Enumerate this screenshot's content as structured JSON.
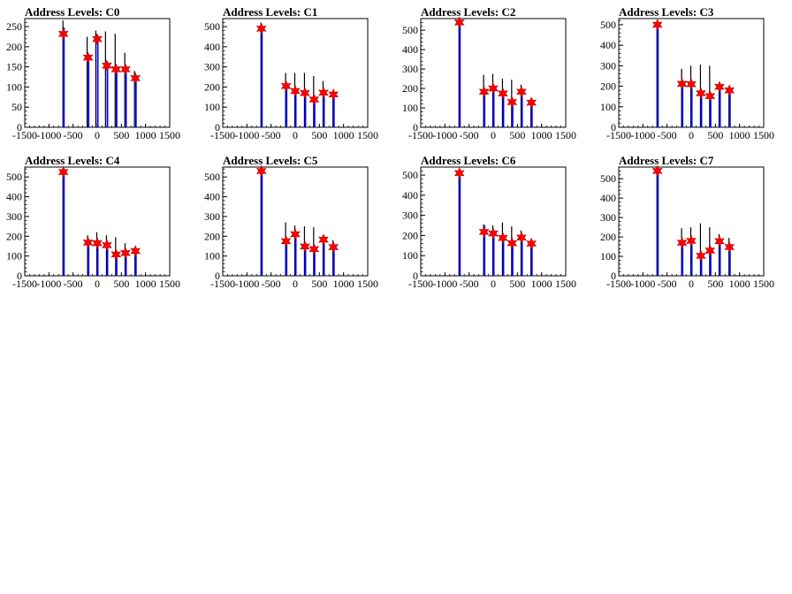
{
  "chart_data": [
    {
      "type": "bar",
      "title": "Address Levels: C0",
      "xlim": [
        -1500,
        1500
      ],
      "ylim": [
        0,
        270
      ],
      "xticks": [
        -1500,
        -1000,
        -500,
        0,
        500,
        1000,
        1500
      ],
      "yticks": [
        0,
        50,
        100,
        150,
        200,
        250
      ],
      "series": [
        {
          "color": "#000000",
          "points": [
            [
              -700,
              265
            ],
            [
              -200,
              225
            ],
            [
              -20,
              240
            ],
            [
              180,
              238
            ],
            [
              380,
              232
            ],
            [
              580,
              185
            ],
            [
              780,
              140
            ]
          ]
        },
        {
          "color": "#0000ff",
          "points": [
            [
              -700,
              248
            ],
            [
              -190,
              175
            ],
            [
              0,
              225
            ],
            [
              200,
              155
            ],
            [
              390,
              150
            ],
            [
              585,
              148
            ],
            [
              790,
              125
            ]
          ]
        }
      ],
      "peaks": [
        [
          -700,
          232
        ],
        [
          -190,
          173
        ],
        [
          0,
          219
        ],
        [
          200,
          153
        ],
        [
          390,
          144
        ],
        [
          585,
          144
        ],
        [
          790,
          122
        ]
      ],
      "marker_color": "#ff0000"
    },
    {
      "type": "bar",
      "title": "Address Levels: C1",
      "xlim": [
        -1500,
        1500
      ],
      "ylim": [
        0,
        540
      ],
      "xticks": [
        -1500,
        -1000,
        -500,
        0,
        500,
        1000,
        1500
      ],
      "yticks": [
        0,
        100,
        200,
        300,
        400,
        500
      ],
      "series": [
        {
          "color": "#000000",
          "points": [
            [
              -700,
              520
            ],
            [
              -190,
              270
            ],
            [
              0,
              270
            ],
            [
              200,
              270
            ],
            [
              390,
              255
            ],
            [
              585,
              230
            ],
            [
              790,
              180
            ]
          ]
        },
        {
          "color": "#0000ff",
          "points": [
            [
              -700,
              495
            ],
            [
              -190,
              210
            ],
            [
              0,
              185
            ],
            [
              200,
              175
            ],
            [
              390,
              145
            ],
            [
              585,
              180
            ],
            [
              790,
              165
            ]
          ]
        }
      ],
      "peaks": [
        [
          -700,
          490
        ],
        [
          -190,
          205
        ],
        [
          0,
          180
        ],
        [
          200,
          170
        ],
        [
          390,
          138
        ],
        [
          585,
          172
        ],
        [
          790,
          163
        ]
      ],
      "marker_color": "#ff0000"
    },
    {
      "type": "bar",
      "title": "Address Levels: C2",
      "xlim": [
        -1500,
        1500
      ],
      "ylim": [
        0,
        560
      ],
      "xticks": [
        -1500,
        -1000,
        -500,
        0,
        500,
        1000,
        1500
      ],
      "yticks": [
        0,
        100,
        200,
        300,
        400,
        500
      ],
      "series": [
        {
          "color": "#000000",
          "points": [
            [
              -700,
              540
            ],
            [
              -190,
              270
            ],
            [
              0,
              275
            ],
            [
              200,
              250
            ],
            [
              390,
              245
            ],
            [
              585,
              220
            ],
            [
              790,
              150
            ]
          ]
        },
        {
          "color": "#0000ff",
          "points": [
            [
              -700,
              545
            ],
            [
              -190,
              190
            ],
            [
              0,
              205
            ],
            [
              200,
              180
            ],
            [
              390,
              140
            ],
            [
              585,
              190
            ],
            [
              790,
              135
            ]
          ]
        }
      ],
      "peaks": [
        [
          -700,
          540
        ],
        [
          -190,
          183
        ],
        [
          0,
          200
        ],
        [
          200,
          174
        ],
        [
          390,
          130
        ],
        [
          585,
          183
        ],
        [
          790,
          127
        ]
      ],
      "marker_color": "#ff0000"
    },
    {
      "type": "bar",
      "title": "Address Levels: C3",
      "xlim": [
        -1500,
        1500
      ],
      "ylim": [
        0,
        530
      ],
      "xticks": [
        -1500,
        -1000,
        -500,
        0,
        500,
        1000,
        1500
      ],
      "yticks": [
        0,
        100,
        200,
        300,
        400,
        500
      ],
      "series": [
        {
          "color": "#000000",
          "points": [
            [
              -700,
              510
            ],
            [
              -190,
              285
            ],
            [
              0,
              300
            ],
            [
              200,
              305
            ],
            [
              390,
              300
            ],
            [
              585,
              215
            ],
            [
              790,
              200
            ]
          ]
        },
        {
          "color": "#0000ff",
          "points": [
            [
              -700,
              505
            ],
            [
              -190,
              215
            ],
            [
              0,
              215
            ],
            [
              200,
              175
            ],
            [
              390,
              160
            ],
            [
              585,
              200
            ],
            [
              790,
              185
            ]
          ]
        }
      ],
      "peaks": [
        [
          -700,
          500
        ],
        [
          -190,
          212
        ],
        [
          0,
          210
        ],
        [
          200,
          166
        ],
        [
          390,
          152
        ],
        [
          585,
          197
        ],
        [
          790,
          180
        ]
      ],
      "marker_color": "#ff0000"
    },
    {
      "type": "bar",
      "title": "Address Levels: C4",
      "xlim": [
        -1500,
        1500
      ],
      "ylim": [
        0,
        550
      ],
      "xticks": [
        -1500,
        -1000,
        -500,
        0,
        500,
        1000,
        1500
      ],
      "yticks": [
        0,
        100,
        200,
        300,
        400,
        500
      ],
      "series": [
        {
          "color": "#000000",
          "points": [
            [
              -700,
              535
            ],
            [
              -190,
              205
            ],
            [
              0,
              220
            ],
            [
              200,
              205
            ],
            [
              390,
              195
            ],
            [
              585,
              165
            ],
            [
              790,
              135
            ]
          ]
        },
        {
          "color": "#0000ff",
          "points": [
            [
              -700,
              530
            ],
            [
              -190,
              175
            ],
            [
              0,
              170
            ],
            [
              200,
              160
            ],
            [
              390,
              115
            ],
            [
              585,
              125
            ],
            [
              790,
              130
            ]
          ]
        }
      ],
      "peaks": [
        [
          -700,
          525
        ],
        [
          -190,
          168
        ],
        [
          0,
          165
        ],
        [
          200,
          155
        ],
        [
          390,
          108
        ],
        [
          585,
          115
        ],
        [
          790,
          125
        ]
      ],
      "marker_color": "#ff0000"
    },
    {
      "type": "bar",
      "title": "Address Levels: C5",
      "xlim": [
        -1500,
        1500
      ],
      "ylim": [
        0,
        550
      ],
      "xticks": [
        -1500,
        -1000,
        -500,
        0,
        500,
        1000,
        1500
      ],
      "yticks": [
        0,
        100,
        200,
        300,
        400,
        500
      ],
      "series": [
        {
          "color": "#000000",
          "points": [
            [
              -700,
              545
            ],
            [
              -190,
              270
            ],
            [
              0,
              255
            ],
            [
              200,
              250
            ],
            [
              390,
              245
            ],
            [
              585,
              205
            ],
            [
              790,
              180
            ]
          ]
        },
        {
          "color": "#0000ff",
          "points": [
            [
              -700,
              535
            ],
            [
              -190,
              180
            ],
            [
              0,
              215
            ],
            [
              200,
              150
            ],
            [
              390,
              140
            ],
            [
              585,
              185
            ],
            [
              790,
              150
            ]
          ]
        }
      ],
      "peaks": [
        [
          -700,
          530
        ],
        [
          -190,
          175
        ],
        [
          0,
          210
        ],
        [
          200,
          148
        ],
        [
          390,
          135
        ],
        [
          585,
          183
        ],
        [
          790,
          145
        ]
      ],
      "marker_color": "#ff0000"
    },
    {
      "type": "bar",
      "title": "Address Levels: C6",
      "xlim": [
        -1500,
        1500
      ],
      "ylim": [
        0,
        540
      ],
      "xticks": [
        -1500,
        -1000,
        -500,
        0,
        500,
        1000,
        1500
      ],
      "yticks": [
        0,
        100,
        200,
        300,
        400,
        500
      ],
      "series": [
        {
          "color": "#000000",
          "points": [
            [
              -700,
              520
            ],
            [
              -190,
              255
            ],
            [
              0,
              250
            ],
            [
              200,
              265
            ],
            [
              390,
              245
            ],
            [
              585,
              225
            ],
            [
              790,
              180
            ]
          ]
        },
        {
          "color": "#0000ff",
          "points": [
            [
              -700,
              515
            ],
            [
              -190,
              250
            ],
            [
              0,
              220
            ],
            [
              200,
              195
            ],
            [
              390,
              165
            ],
            [
              585,
              200
            ],
            [
              790,
              165
            ]
          ]
        }
      ],
      "peaks": [
        [
          -700,
          510
        ],
        [
          -190,
          218
        ],
        [
          0,
          210
        ],
        [
          200,
          188
        ],
        [
          390,
          162
        ],
        [
          585,
          190
        ],
        [
          790,
          160
        ]
      ],
      "marker_color": "#ff0000"
    },
    {
      "type": "bar",
      "title": "Address Levels: C7",
      "xlim": [
        -1500,
        1500
      ],
      "ylim": [
        0,
        560
      ],
      "xticks": [
        -1500,
        -1000,
        -500,
        0,
        500,
        1000,
        1500
      ],
      "yticks": [
        0,
        100,
        200,
        300,
        400,
        500
      ],
      "series": [
        {
          "color": "#000000",
          "points": [
            [
              -700,
              555
            ],
            [
              -190,
              245
            ],
            [
              0,
              250
            ],
            [
              200,
              270
            ],
            [
              390,
              250
            ],
            [
              585,
              215
            ],
            [
              790,
              195
            ]
          ]
        },
        {
          "color": "#0000ff",
          "points": [
            [
              -700,
              550
            ],
            [
              -190,
              175
            ],
            [
              0,
              185
            ],
            [
              200,
              110
            ],
            [
              390,
              140
            ],
            [
              585,
              185
            ],
            [
              790,
              155
            ]
          ]
        }
      ],
      "peaks": [
        [
          -700,
          540
        ],
        [
          -190,
          170
        ],
        [
          0,
          180
        ],
        [
          200,
          103
        ],
        [
          390,
          130
        ],
        [
          585,
          178
        ],
        [
          790,
          148
        ]
      ],
      "marker_color": "#ff0000"
    }
  ]
}
